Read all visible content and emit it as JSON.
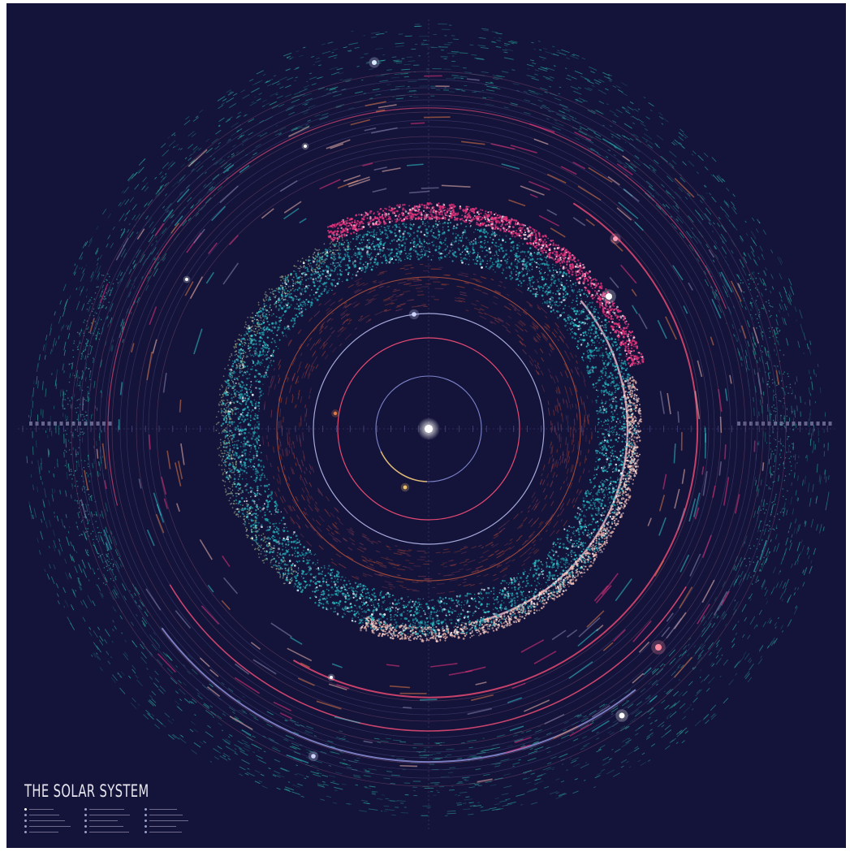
{
  "title": "THE SOLAR SYSTEM",
  "colors": {
    "background": "#14133a",
    "sun": "#ffffff",
    "asteroid_belt": "#2ec4c9",
    "hilda_group": "#e9357d",
    "trojans": "#f0b9ae",
    "kuiper": "#2aa89a",
    "orbit_pink": "#e44a72",
    "orbit_blue": "#7d84c9",
    "grid": "#3a3866"
  },
  "legend": {
    "entries": [
      {
        "icon": "dot-icon",
        "color": "#ffffff"
      },
      {
        "icon": "dot-icon",
        "color": "#9aa0c8"
      },
      {
        "icon": "dot-icon",
        "color": "#9aa0c8"
      },
      {
        "icon": "dot-icon",
        "color": "#9aa0c8"
      },
      {
        "icon": "dot-icon",
        "color": "#9aa0c8"
      },
      {
        "icon": "dot-icon",
        "color": "#9aa0c8"
      },
      {
        "icon": "dot-icon",
        "color": "#9aa0c8"
      },
      {
        "icon": "dot-icon",
        "color": "#9aa0c8"
      },
      {
        "icon": "dot-icon",
        "color": "#9aa0c8"
      },
      {
        "icon": "dot-icon",
        "color": "#9aa0c8"
      },
      {
        "icon": "dot-icon",
        "color": "#9aa0c8"
      },
      {
        "icon": "dot-icon",
        "color": "#9aa0c8"
      },
      {
        "icon": "dot-icon",
        "color": "#9aa0c8"
      },
      {
        "icon": "dot-icon",
        "color": "#9aa0c8"
      },
      {
        "icon": "dot-icon",
        "color": "#9aa0c8"
      }
    ]
  }
}
